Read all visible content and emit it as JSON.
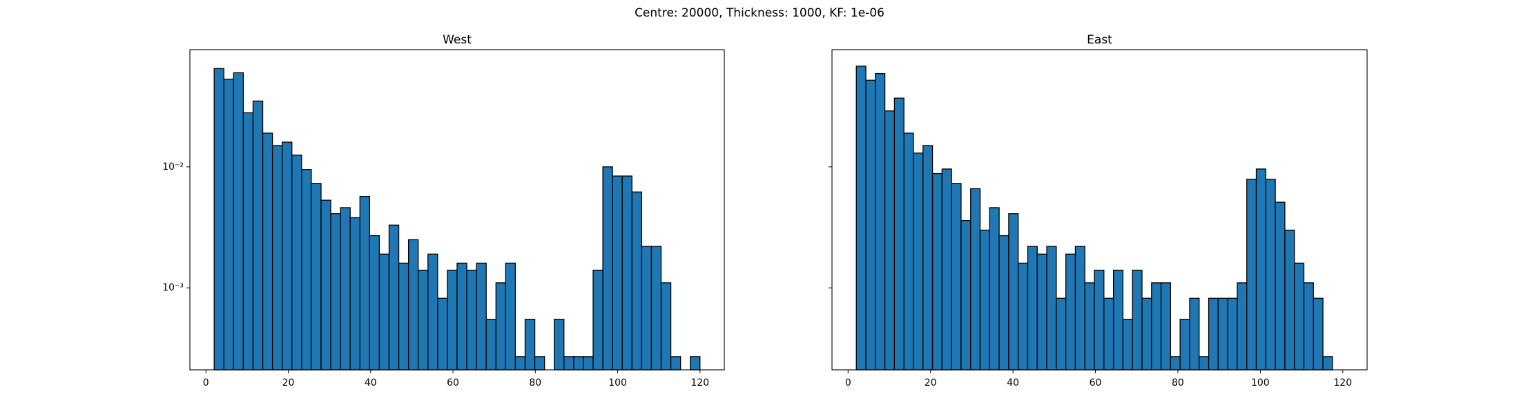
{
  "title": "Centre: 20000, Thickness: 1000, KF: 1e-06",
  "chart_data": [
    {
      "type": "histogram",
      "title": "West",
      "color": "#1f77b4",
      "edgecolor": "#000000",
      "log_y": true,
      "bins": [
        2,
        4.36,
        6.72,
        9.08,
        11.44,
        13.8,
        16.16,
        18.52,
        20.88,
        23.24,
        25.6,
        27.96,
        30.32,
        32.68,
        35.04,
        37.4,
        39.76,
        42.12,
        44.48,
        46.84,
        49.2,
        51.56,
        53.92,
        56.28,
        58.64,
        61,
        63.36,
        65.72,
        68.08,
        70.44,
        72.8,
        75.16,
        77.52,
        79.88,
        82.24,
        84.6,
        86.96,
        89.32,
        91.68,
        94.04,
        96.4,
        98.76,
        101.12,
        103.48,
        105.84,
        108.2,
        110.56,
        112.92,
        115.28,
        117.64,
        120
      ],
      "values": [
        0.065,
        0.053,
        0.06,
        0.028,
        0.035,
        0.019,
        0.015,
        0.016,
        0.0125,
        0.0095,
        0.0073,
        0.0053,
        0.0041,
        0.0046,
        0.0038,
        0.0057,
        0.0027,
        0.0019,
        0.0033,
        0.0016,
        0.0025,
        0.0014,
        0.0019,
        0.00082,
        0.0014,
        0.0016,
        0.0014,
        0.0016,
        0.00055,
        0.0011,
        0.0016,
        0.00027,
        0.00055,
        0.00027,
        0,
        0.00055,
        0.00027,
        0.00027,
        0.00027,
        0.0014,
        0.01,
        0.0084,
        0.0084,
        0.0062,
        0.0022,
        0.0022,
        0.0011,
        0.00027,
        0,
        0.00027
      ],
      "xlim": [
        -3.9,
        125.9
      ],
      "xticks": [
        0,
        20,
        40,
        60,
        80,
        100,
        120
      ],
      "ylim": [
        0.00021,
        0.093
      ],
      "yticks": [
        {
          "value": 0.001,
          "label": "10⁻³"
        },
        {
          "value": 0.01,
          "label": "10⁻²"
        }
      ]
    },
    {
      "type": "histogram",
      "title": "East",
      "color": "#1f77b4",
      "edgecolor": "#000000",
      "log_y": true,
      "bins": [
        2,
        4.31,
        6.62,
        8.93,
        11.24,
        13.55,
        15.86,
        18.17,
        20.48,
        22.79,
        25.1,
        27.41,
        29.72,
        32.03,
        34.34,
        36.65,
        38.96,
        41.27,
        43.58,
        45.89,
        48.2,
        50.51,
        52.82,
        55.13,
        57.44,
        59.75,
        62.06,
        64.37,
        66.68,
        68.99,
        71.3,
        73.61,
        75.92,
        78.23,
        80.54,
        82.85,
        85.16,
        87.47,
        89.78,
        92.09,
        94.4,
        96.71,
        99.02,
        101.33,
        103.64,
        105.95,
        108.26,
        110.57,
        112.88,
        115.19,
        117.5
      ],
      "values": [
        0.068,
        0.052,
        0.059,
        0.029,
        0.037,
        0.019,
        0.013,
        0.015,
        0.0088,
        0.0096,
        0.0073,
        0.0036,
        0.0066,
        0.003,
        0.0046,
        0.0027,
        0.0041,
        0.0016,
        0.0022,
        0.0019,
        0.0022,
        0.00082,
        0.0019,
        0.0022,
        0.0011,
        0.0014,
        0.00082,
        0.0014,
        0.00055,
        0.0014,
        0.00082,
        0.0011,
        0.0011,
        0.00027,
        0.00055,
        0.00082,
        0.00027,
        0.00082,
        0.00082,
        0.00082,
        0.0011,
        0.0079,
        0.0096,
        0.0079,
        0.0051,
        0.003,
        0.0016,
        0.0011,
        0.00082,
        0.00027
      ],
      "xlim": [
        -3.9,
        125.9
      ],
      "xticks": [
        0,
        20,
        40,
        60,
        80,
        100,
        120
      ],
      "ylim": [
        0.00021,
        0.093
      ],
      "yticks": [
        0.001,
        0.01
      ],
      "show_ytick_labels": false
    }
  ]
}
